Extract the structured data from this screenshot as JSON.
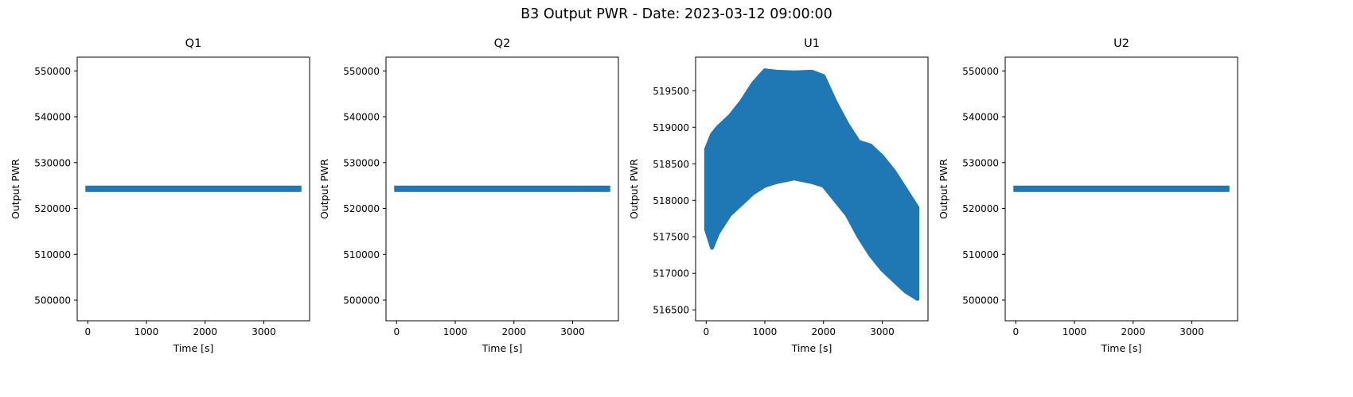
{
  "figure": {
    "title": "B3 Output PWR - Date: 2023-03-12 09:00:00",
    "marker_color": "#1f77b4"
  },
  "chart_data": [
    {
      "type": "scatter",
      "title": "Q1",
      "xlabel": "Time [s]",
      "ylabel": "Output PWR",
      "marker": "star",
      "xlim": [
        -180,
        3780
      ],
      "ylim": [
        495500,
        553000
      ],
      "xticks": [
        0,
        1000,
        2000,
        3000
      ],
      "yticks": [
        500000,
        510000,
        520000,
        530000,
        540000,
        550000
      ],
      "series": [
        {
          "x_range": [
            0,
            3600
          ],
          "y": 524288
        }
      ]
    },
    {
      "type": "scatter",
      "title": "Q2",
      "xlabel": "Time [s]",
      "ylabel": "Output PWR",
      "marker": "star",
      "xlim": [
        -180,
        3780
      ],
      "ylim": [
        495500,
        553000
      ],
      "xticks": [
        0,
        1000,
        2000,
        3000
      ],
      "yticks": [
        500000,
        510000,
        520000,
        530000,
        540000,
        550000
      ],
      "series": [
        {
          "x_range": [
            0,
            3600
          ],
          "y": 524288
        }
      ]
    },
    {
      "type": "scatter",
      "title": "U1",
      "xlabel": "Time [s]",
      "ylabel": "Output PWR",
      "marker": "star",
      "xlim": [
        -180,
        3780
      ],
      "ylim": [
        516350,
        519960
      ],
      "xticks": [
        0,
        1000,
        2000,
        3000
      ],
      "yticks": [
        516500,
        517000,
        517500,
        518000,
        518500,
        519000,
        519500
      ],
      "series": [
        {
          "band": {
            "x": [
              0,
              100,
              200,
              400,
              600,
              800,
              1000,
              1200,
              1500,
              1800,
              2000,
              2200,
              2400,
              2600,
              2800,
              3000,
              3200,
              3400,
              3600
            ],
            "upper": [
              518700,
              518900,
              519000,
              519150,
              519350,
              519600,
              519780,
              519760,
              519750,
              519760,
              519700,
              519350,
              519050,
              518800,
              518750,
              518600,
              518400,
              518150,
              517900
            ],
            "lower": [
              517600,
              517350,
              517550,
              517800,
              517950,
              518100,
              518200,
              518250,
              518300,
              518250,
              518200,
              518000,
              517800,
              517500,
              517250,
              517050,
              516900,
              516750,
              516650
            ]
          }
        }
      ]
    },
    {
      "type": "scatter",
      "title": "U2",
      "xlabel": "Time [s]",
      "ylabel": "Output PWR",
      "marker": "star",
      "xlim": [
        -180,
        3780
      ],
      "ylim": [
        495500,
        553000
      ],
      "xticks": [
        0,
        1000,
        2000,
        3000
      ],
      "yticks": [
        500000,
        510000,
        520000,
        530000,
        540000,
        550000
      ],
      "series": [
        {
          "x_range": [
            0,
            3600
          ],
          "y": 524288
        }
      ]
    }
  ]
}
